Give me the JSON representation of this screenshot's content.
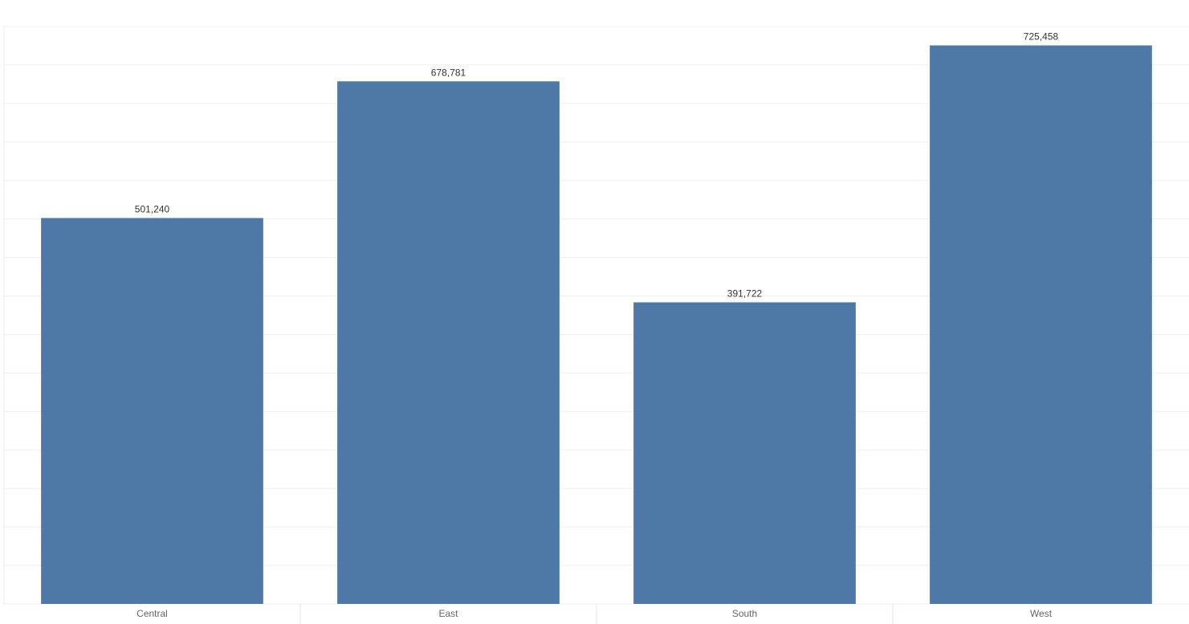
{
  "chart_data": {
    "type": "bar",
    "categories": [
      "Central",
      "East",
      "South",
      "West"
    ],
    "values": [
      501240,
      678781,
      391722,
      725458
    ],
    "value_labels": [
      "501,240",
      "678,781",
      "391,722",
      "725,458"
    ],
    "color": "#4e79a7",
    "ylim": [
      0,
      750000
    ],
    "yticks": [
      0,
      50000,
      100000,
      150000,
      200000,
      250000,
      300000,
      350000,
      400000,
      450000,
      500000,
      550000,
      600000,
      650000,
      700000,
      750000
    ],
    "grid": true
  }
}
